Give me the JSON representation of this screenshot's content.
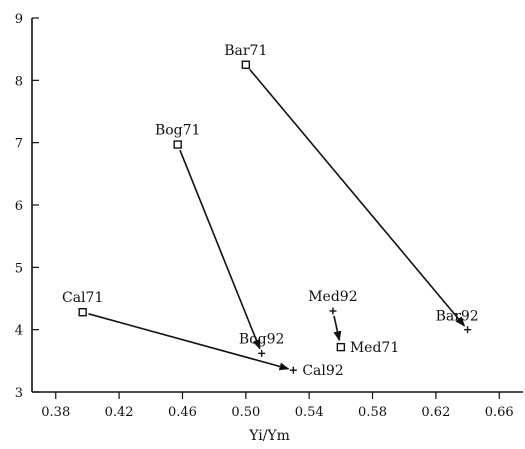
{
  "chart_data": {
    "type": "scatter",
    "title": "",
    "xlabel": "Yi/Ym",
    "ylabel": "",
    "xlim": [
      0.365,
      0.675
    ],
    "ylim": [
      3,
      9
    ],
    "xticks": [
      0.38,
      0.42,
      0.46,
      0.5,
      0.54,
      0.58,
      0.62,
      0.66
    ],
    "xtick_labels": [
      "0.38",
      "0.42",
      "0.46",
      "0.50",
      "0.54",
      "0.58",
      "0.62",
      "0.66"
    ],
    "yticks": [
      3,
      4,
      5,
      6,
      7,
      8,
      9
    ],
    "ytick_labels": [
      "3",
      "4",
      "5",
      "6",
      "7",
      "8",
      "9"
    ],
    "grid": false,
    "points": [
      {
        "label": "Bar71",
        "x": 0.5,
        "y": 8.25,
        "marker": "square",
        "label_pos": "above"
      },
      {
        "label": "Bog71",
        "x": 0.457,
        "y": 6.97,
        "marker": "square",
        "label_pos": "above"
      },
      {
        "label": "Cal71",
        "x": 0.397,
        "y": 4.28,
        "marker": "square",
        "label_pos": "above"
      },
      {
        "label": "Med71",
        "x": 0.56,
        "y": 3.72,
        "marker": "square",
        "label_pos": "right"
      },
      {
        "label": "Bar92",
        "x": 0.64,
        "y": 4.0,
        "marker": "plus",
        "label_pos": "above-left"
      },
      {
        "label": "Bog92",
        "x": 0.51,
        "y": 3.62,
        "marker": "plus",
        "label_pos": "above"
      },
      {
        "label": "Cal92",
        "x": 0.53,
        "y": 3.35,
        "marker": "plus",
        "label_pos": "right"
      },
      {
        "label": "Med92",
        "x": 0.555,
        "y": 4.3,
        "marker": "plus",
        "label_pos": "above"
      }
    ],
    "arrows": [
      {
        "from": "Bar71",
        "to": "Bar92"
      },
      {
        "from": "Bog71",
        "to": "Bog92"
      },
      {
        "from": "Cal71",
        "to": "Cal92"
      },
      {
        "from": "Med92",
        "to": "Med71"
      }
    ]
  }
}
